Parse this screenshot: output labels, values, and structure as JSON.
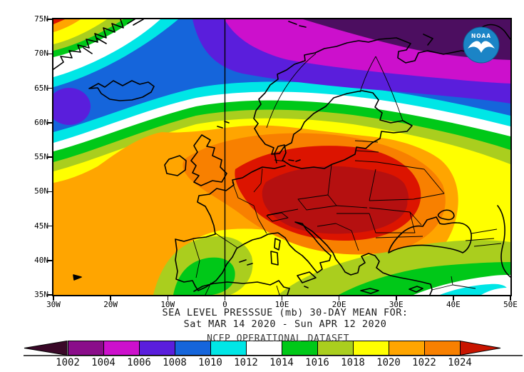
{
  "figure": {
    "title_line1": "SEA LEVEL PRESSSUE (mb)   30-DAY MEAN FOR:",
    "title_line2": "Sat MAR 14 2020 - Sun APR 12 2020",
    "dataset_label": "NCEP OPERATIONAL DATASET",
    "logo_text": "NOAA"
  },
  "axes": {
    "lat_ticks": [
      "75N",
      "70N",
      "65N",
      "60N",
      "55N",
      "50N",
      "45N",
      "40N",
      "35N"
    ],
    "lon_ticks": [
      "30W",
      "20W",
      "10W",
      "0",
      "10E",
      "20E",
      "30E",
      "40E",
      "50E"
    ]
  },
  "colorbar": {
    "labels": [
      "1002",
      "1004",
      "1006",
      "1008",
      "1010",
      "1012",
      "1014",
      "1016",
      "1018",
      "1020",
      "1022",
      "1024"
    ],
    "segment_colors": [
      "#8A0D8A",
      "#CC10CC",
      "#5A1EDC",
      "#1565DB",
      "#00E6E6",
      "#FFFFFF",
      "#00C818",
      "#AACE1E",
      "#FFFF00",
      "#FFA500",
      "#F88000"
    ],
    "left_arrow_color": "#3A0828",
    "right_arrow_color": "#C81400"
  },
  "palette": {
    "dark_purple": "#4C0E60",
    "magenta": "#CC10CC",
    "violet": "#5A1EDC",
    "blue": "#1565DB",
    "cyan": "#00E6E6",
    "white": "#FFFFFF",
    "green": "#00C818",
    "yellow_green": "#AACE1E",
    "yellow": "#FFFF00",
    "orange": "#FFA500",
    "dark_orange": "#F88000",
    "red": "#DC1400",
    "dark_red": "#B51010",
    "coast_black": "#000000",
    "logo_blue": "#1B84C6"
  },
  "chart_data": {
    "type": "heatmap",
    "variable": "sea level pressure",
    "units": "mb",
    "statistic": "30-day mean",
    "period_start": "Sat MAR 14 2020",
    "period_end": "Sun APR 12 2020",
    "source": "NCEP OPERATIONAL DATASET",
    "region": {
      "lon_min": "30W",
      "lon_max": "50E",
      "lat_min": "35N",
      "lat_max": "75N"
    },
    "contour_levels_mb": [
      1002,
      1004,
      1006,
      1008,
      1010,
      1012,
      1014,
      1016,
      1018,
      1020,
      1022,
      1024
    ],
    "level_colors": [
      "#3A0828",
      "#8A0D8A",
      "#CC10CC",
      "#5A1EDC",
      "#1565DB",
      "#00E6E6",
      "#FFFFFF",
      "#00C818",
      "#AACE1E",
      "#FFFF00",
      "#FFA500",
      "#F88000",
      "#C81400"
    ],
    "features": [
      {
        "feature": "high-pressure center",
        "value_mb": ">1024",
        "location": "central Europe (~5E-30E, 48N-57N: Germany, Poland, Baltic states)"
      },
      {
        "feature": "secondary high corner",
        "value_mb": ">1024",
        "location": "southeast Greenland, top-left map corner (~30W, 75N)"
      },
      {
        "feature": "low-pressure region",
        "value_mb": "<1002",
        "location": "Arctic / Barents Sea across top of map (10E-50E, >70N)"
      },
      {
        "feature": "low-pressure trough",
        "value_mb": "1010-1014",
        "location": "eastern Mediterranean / Middle East (bottom-right corner)"
      },
      {
        "feature": "North Atlantic low band",
        "value_mb": "1008-1012",
        "location": "~60N-68N between Iceland and Norway"
      }
    ]
  }
}
